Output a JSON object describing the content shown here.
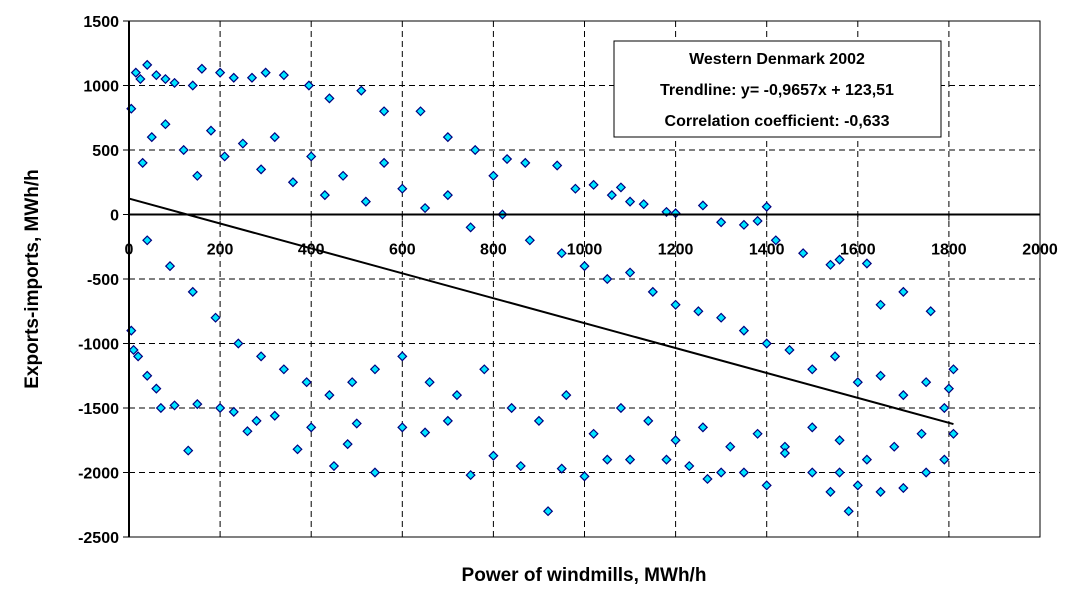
{
  "chart_data": {
    "type": "scatter",
    "xlabel": "Power of windmills, MWh/h",
    "ylabel": "Exports-imports, MWh/h",
    "xlim": [
      0,
      2000
    ],
    "ylim": [
      -2500,
      1500
    ],
    "x_ticks": [
      0,
      200,
      400,
      600,
      800,
      1000,
      1200,
      1400,
      1600,
      1800,
      2000
    ],
    "y_ticks": [
      -2500,
      -2000,
      -1500,
      -1000,
      -500,
      0,
      500,
      1000,
      1500
    ],
    "x_tick_labels": [
      "0",
      "200",
      "400",
      "600",
      "800",
      "1000",
      "1200",
      "1400",
      "1600",
      "1800",
      "2000"
    ],
    "y_tick_labels": [
      "-2500",
      "-2000",
      "-1500",
      "-1000",
      "-500",
      "0",
      "500",
      "1000",
      "1500"
    ],
    "grid": true,
    "legend": {
      "placement": "top-right",
      "lines": [
        "Western Denmark 2002",
        "Trendline: y= -0,9657x + 123,51",
        "Correlation coefficient: -0,633"
      ]
    },
    "trendline": {
      "slope": -0.9657,
      "intercept": 123.51,
      "x_range": [
        0,
        1810
      ]
    },
    "series": [
      {
        "marker_fill": "#00e5ff",
        "marker_edge": "#000080",
        "points": [
          [
            5,
            820
          ],
          [
            15,
            1100
          ],
          [
            25,
            1050
          ],
          [
            40,
            1160
          ],
          [
            60,
            1080
          ],
          [
            80,
            1050
          ],
          [
            100,
            1020
          ],
          [
            140,
            1000
          ],
          [
            160,
            1130
          ],
          [
            200,
            1100
          ],
          [
            230,
            1060
          ],
          [
            270,
            1060
          ],
          [
            300,
            1100
          ],
          [
            340,
            1080
          ],
          [
            395,
            1000
          ],
          [
            440,
            900
          ],
          [
            510,
            960
          ],
          [
            560,
            800
          ],
          [
            640,
            800
          ],
          [
            700,
            600
          ],
          [
            760,
            500
          ],
          [
            800,
            300
          ],
          [
            830,
            430
          ],
          [
            870,
            400
          ],
          [
            940,
            380
          ],
          [
            980,
            200
          ],
          [
            1020,
            230
          ],
          [
            1060,
            150
          ],
          [
            1080,
            210
          ],
          [
            1100,
            100
          ],
          [
            1130,
            80
          ],
          [
            1180,
            20
          ],
          [
            1200,
            10
          ],
          [
            1260,
            70
          ],
          [
            1300,
            -60
          ],
          [
            1350,
            -80
          ],
          [
            1380,
            -50
          ],
          [
            1400,
            60
          ],
          [
            1420,
            -200
          ],
          [
            1480,
            -300
          ],
          [
            1540,
            -390
          ],
          [
            1560,
            -350
          ],
          [
            1620,
            -380
          ],
          [
            1650,
            -700
          ],
          [
            1700,
            -600
          ],
          [
            1760,
            -750
          ],
          [
            1810,
            -1200
          ],
          [
            5,
            -900
          ],
          [
            10,
            -1050
          ],
          [
            20,
            -1100
          ],
          [
            40,
            -1250
          ],
          [
            60,
            -1350
          ],
          [
            70,
            -1500
          ],
          [
            100,
            -1480
          ],
          [
            130,
            -1830
          ],
          [
            150,
            -1470
          ],
          [
            200,
            -1500
          ],
          [
            230,
            -1530
          ],
          [
            260,
            -1680
          ],
          [
            280,
            -1600
          ],
          [
            320,
            -1560
          ],
          [
            370,
            -1820
          ],
          [
            400,
            -1650
          ],
          [
            450,
            -1950
          ],
          [
            480,
            -1780
          ],
          [
            500,
            -1620
          ],
          [
            540,
            -2000
          ],
          [
            600,
            -1650
          ],
          [
            650,
            -1690
          ],
          [
            700,
            -1600
          ],
          [
            750,
            -2020
          ],
          [
            800,
            -1870
          ],
          [
            860,
            -1950
          ],
          [
            920,
            -2300
          ],
          [
            950,
            -1970
          ],
          [
            1000,
            -2030
          ],
          [
            1050,
            -1900
          ],
          [
            1100,
            -1900
          ],
          [
            1180,
            -1900
          ],
          [
            1230,
            -1950
          ],
          [
            1270,
            -2050
          ],
          [
            1300,
            -2000
          ],
          [
            1350,
            -2000
          ],
          [
            1400,
            -2100
          ],
          [
            1440,
            -1800
          ],
          [
            1500,
            -2000
          ],
          [
            1540,
            -2150
          ],
          [
            1560,
            -2000
          ],
          [
            1580,
            -2300
          ],
          [
            1600,
            -2100
          ],
          [
            1650,
            -2150
          ],
          [
            1700,
            -2120
          ],
          [
            1750,
            -2000
          ],
          [
            1790,
            -1900
          ],
          [
            1810,
            -1700
          ],
          [
            30,
            400
          ],
          [
            50,
            600
          ],
          [
            80,
            700
          ],
          [
            120,
            500
          ],
          [
            150,
            300
          ],
          [
            180,
            650
          ],
          [
            210,
            450
          ],
          [
            250,
            550
          ],
          [
            290,
            350
          ],
          [
            320,
            600
          ],
          [
            360,
            250
          ],
          [
            400,
            450
          ],
          [
            430,
            150
          ],
          [
            470,
            300
          ],
          [
            520,
            100
          ],
          [
            560,
            400
          ],
          [
            600,
            200
          ],
          [
            650,
            50
          ],
          [
            700,
            150
          ],
          [
            750,
            -100
          ],
          [
            820,
            0
          ],
          [
            880,
            -200
          ],
          [
            950,
            -300
          ],
          [
            1000,
            -400
          ],
          [
            1050,
            -500
          ],
          [
            1100,
            -450
          ],
          [
            1150,
            -600
          ],
          [
            1200,
            -700
          ],
          [
            1250,
            -750
          ],
          [
            1300,
            -800
          ],
          [
            1350,
            -900
          ],
          [
            1400,
            -1000
          ],
          [
            1450,
            -1050
          ],
          [
            1500,
            -1200
          ],
          [
            1550,
            -1100
          ],
          [
            1600,
            -1300
          ],
          [
            1650,
            -1250
          ],
          [
            1700,
            -1400
          ],
          [
            1750,
            -1300
          ],
          [
            1800,
            -1350
          ],
          [
            40,
            -200
          ],
          [
            90,
            -400
          ],
          [
            140,
            -600
          ],
          [
            190,
            -800
          ],
          [
            240,
            -1000
          ],
          [
            290,
            -1100
          ],
          [
            340,
            -1200
          ],
          [
            390,
            -1300
          ],
          [
            440,
            -1400
          ],
          [
            490,
            -1300
          ],
          [
            540,
            -1200
          ],
          [
            600,
            -1100
          ],
          [
            660,
            -1300
          ],
          [
            720,
            -1400
          ],
          [
            780,
            -1200
          ],
          [
            840,
            -1500
          ],
          [
            900,
            -1600
          ],
          [
            960,
            -1400
          ],
          [
            1020,
            -1700
          ],
          [
            1080,
            -1500
          ],
          [
            1140,
            -1600
          ],
          [
            1200,
            -1750
          ],
          [
            1260,
            -1650
          ],
          [
            1320,
            -1800
          ],
          [
            1380,
            -1700
          ],
          [
            1440,
            -1850
          ],
          [
            1500,
            -1650
          ],
          [
            1560,
            -1750
          ],
          [
            1620,
            -1900
          ],
          [
            1680,
            -1800
          ],
          [
            1740,
            -1700
          ],
          [
            1790,
            -1500
          ]
        ]
      }
    ]
  }
}
